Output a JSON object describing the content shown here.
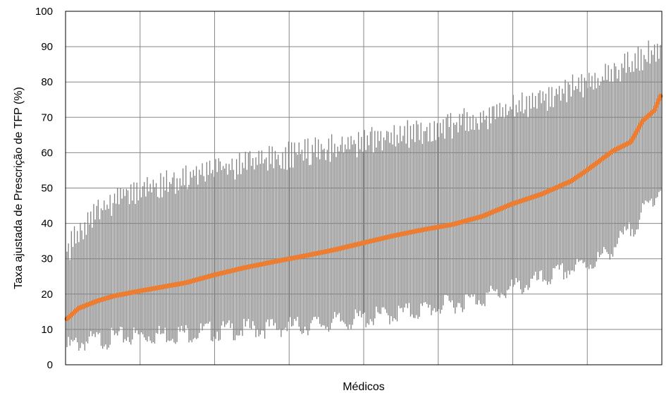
{
  "chart_data": {
    "type": "scatter",
    "title": "",
    "xlabel": "Médicos",
    "ylabel": "Taxa ajustada de Prescrição de TFP (%)",
    "ylim": [
      0,
      100
    ],
    "yticks": [
      0,
      10,
      20,
      30,
      40,
      50,
      60,
      70,
      80,
      90,
      100
    ],
    "grid": true,
    "legend": "none",
    "n_physicians": 400,
    "series": [
      {
        "role": "point-estimate",
        "color": "#ED7D31",
        "profile": [
          [
            0,
            13
          ],
          [
            0.01,
            14.5
          ],
          [
            0.02,
            16
          ],
          [
            0.05,
            18
          ],
          [
            0.08,
            19.5
          ],
          [
            0.12,
            20.8
          ],
          [
            0.17,
            22.3
          ],
          [
            0.2,
            23.2
          ],
          [
            0.25,
            25.5
          ],
          [
            0.3,
            27.5
          ],
          [
            0.35,
            29.2
          ],
          [
            0.4,
            30.8
          ],
          [
            0.45,
            32.5
          ],
          [
            0.5,
            34.5
          ],
          [
            0.55,
            36.5
          ],
          [
            0.6,
            38.2
          ],
          [
            0.65,
            39.7
          ],
          [
            0.7,
            42
          ],
          [
            0.75,
            45.5
          ],
          [
            0.8,
            48.3
          ],
          [
            0.85,
            52
          ],
          [
            0.88,
            55.5
          ],
          [
            0.9,
            58
          ],
          [
            0.92,
            60.5
          ],
          [
            0.95,
            63
          ],
          [
            0.97,
            69
          ],
          [
            0.99,
            72
          ],
          [
            1.0,
            76
          ]
        ]
      },
      {
        "role": "confidence-interval",
        "color": "#808080",
        "lower_profile": [
          [
            0,
            5
          ],
          [
            0.03,
            6.5
          ],
          [
            0.1,
            8
          ],
          [
            0.2,
            9
          ],
          [
            0.3,
            10
          ],
          [
            0.4,
            11
          ],
          [
            0.5,
            13
          ],
          [
            0.6,
            15.5
          ],
          [
            0.7,
            19
          ],
          [
            0.8,
            24
          ],
          [
            0.9,
            30
          ],
          [
            0.95,
            38
          ],
          [
            1.0,
            50
          ]
        ],
        "upper_profile": [
          [
            0,
            32
          ],
          [
            0.02,
            38
          ],
          [
            0.05,
            43
          ],
          [
            0.1,
            48
          ],
          [
            0.2,
            53
          ],
          [
            0.3,
            57
          ],
          [
            0.4,
            60
          ],
          [
            0.5,
            63
          ],
          [
            0.6,
            66
          ],
          [
            0.7,
            70
          ],
          [
            0.8,
            75
          ],
          [
            0.9,
            81
          ],
          [
            0.95,
            85
          ],
          [
            1.0,
            90
          ]
        ]
      }
    ]
  }
}
